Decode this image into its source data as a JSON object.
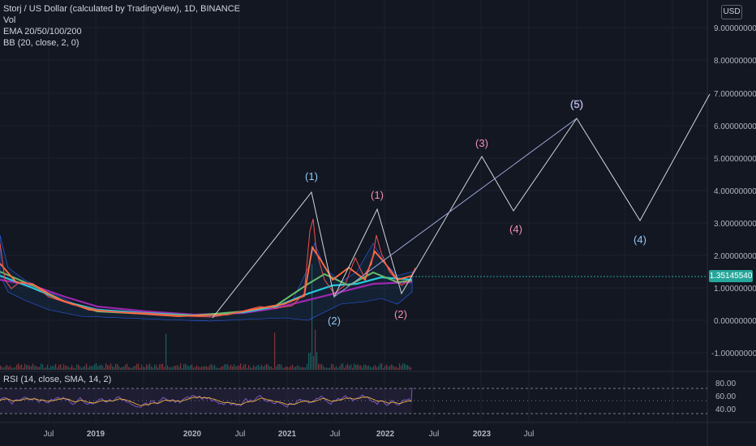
{
  "legend": {
    "title": "Storj / US Dollar (calculated by TradingView), 1D, BINANCE",
    "vol": "Vol",
    "ema": "EMA 20/50/100/200",
    "bb": "BB (20, close, 2, 0)"
  },
  "currency_button": "USD",
  "current_price": "1.35145540",
  "price_axis": [
    "9.00000000",
    "8.00000000",
    "7.00000000",
    "6.00000000",
    "5.00000000",
    "4.00000000",
    "3.00000000",
    "2.00000000",
    "1.00000000",
    "0.00000000",
    "-1.00000000"
  ],
  "rsi": {
    "label": "RSI (14, close, SMA, 14, 2)",
    "axis": [
      "80.00",
      "60.00",
      "40.00"
    ]
  },
  "time_axis": [
    "Jul",
    "2019",
    "2020",
    "Jul",
    "2021",
    "Jul",
    "2022",
    "Jul",
    "2023",
    "Jul"
  ],
  "wave_labels": [
    "(1)",
    "(2)",
    "(1)",
    "(2)",
    "(3)",
    "(4)",
    "(5)",
    "(4)"
  ],
  "colors": {
    "background": "#131722",
    "grid": "#1e222d",
    "wave_pink": "#f48fb1",
    "wave_blue": "#90caf9",
    "price_tag": "#26a69a",
    "rsi": "#7e57c2"
  }
}
